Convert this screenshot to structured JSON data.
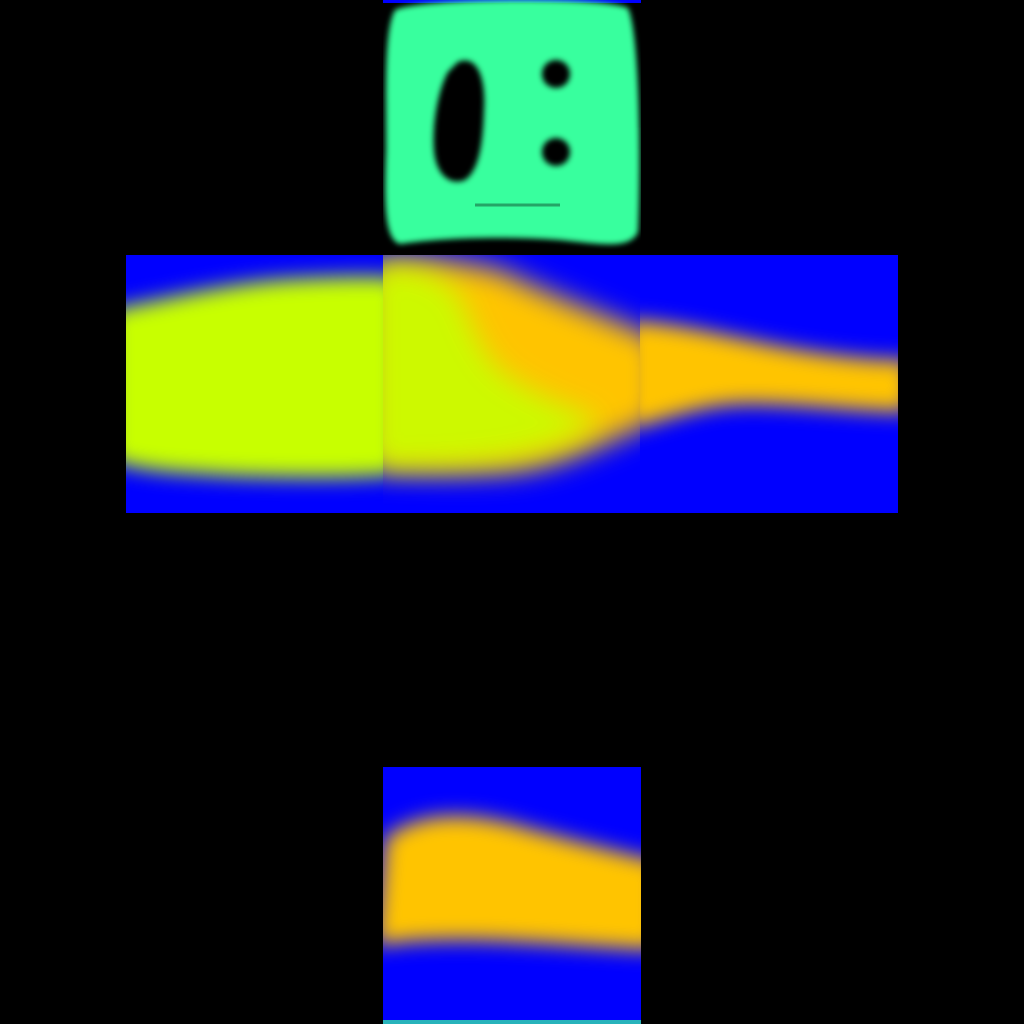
{
  "texture": {
    "background": "#000000",
    "faces": [
      {
        "id": "top",
        "base_color": "#0000ff",
        "feature_color": "#39ff9e",
        "feature": "face-with-eyes"
      },
      {
        "id": "left",
        "base_color": "#0000ff",
        "feature_color": "#c8ff00"
      },
      {
        "id": "front",
        "base_color": "#0000ff",
        "feature_color": "#c8ff00",
        "accent_color": "#ffc400"
      },
      {
        "id": "right",
        "base_color": "#0000ff",
        "feature_color": "#ffc400"
      },
      {
        "id": "bottom",
        "base_color": "#0000ff",
        "feature_color": "#ffc400"
      }
    ]
  }
}
